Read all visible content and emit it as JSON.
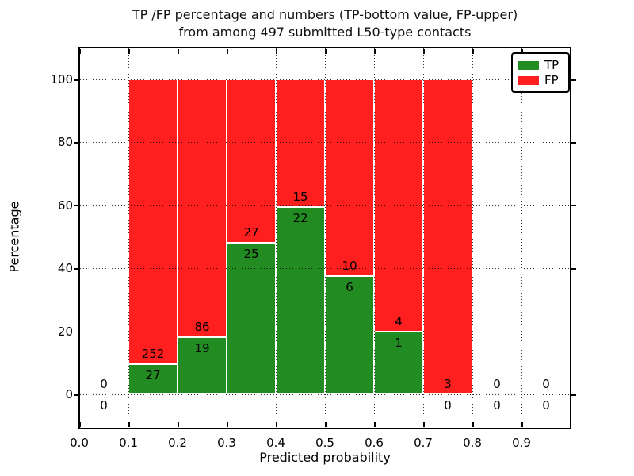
{
  "chart_data": {
    "type": "bar",
    "stacked": true,
    "percentage_scale": true,
    "title_line1": "TP /FP percentage and numbers (TP-bottom value, FP-upper)",
    "title_line2": "from among 497 submitted L50-type contacts",
    "total_contacts": 497,
    "xlabel": "Predicted probability",
    "ylabel": "Percentage",
    "grid": true,
    "xlim": [
      0.0,
      1.0
    ],
    "ylim": [
      -11,
      111
    ],
    "x_ticks": [
      {
        "value": 0.0,
        "label": "0.0"
      },
      {
        "value": 0.1,
        "label": "0.1"
      },
      {
        "value": 0.2,
        "label": "0.2"
      },
      {
        "value": 0.3,
        "label": "0.3"
      },
      {
        "value": 0.4,
        "label": "0.4"
      },
      {
        "value": 0.5,
        "label": "0.5"
      },
      {
        "value": 0.6,
        "label": "0.6"
      },
      {
        "value": 0.7,
        "label": "0.7"
      },
      {
        "value": 0.8,
        "label": "0.8"
      },
      {
        "value": 0.9,
        "label": "0.9"
      }
    ],
    "y_ticks": [
      {
        "value": 0,
        "label": "0"
      },
      {
        "value": 20,
        "label": "20"
      },
      {
        "value": 40,
        "label": "40"
      },
      {
        "value": 60,
        "label": "60"
      },
      {
        "value": 80,
        "label": "80"
      },
      {
        "value": 100,
        "label": "100"
      }
    ],
    "legend": {
      "position": "upper-right",
      "items": [
        {
          "label": "TP",
          "color": "#228b22"
        },
        {
          "label": "FP",
          "color": "#ff1f1f"
        }
      ]
    },
    "bins": [
      {
        "x0": 0.0,
        "x1": 0.1,
        "tp": 0,
        "fp": 0
      },
      {
        "x0": 0.1,
        "x1": 0.2,
        "tp": 27,
        "fp": 252
      },
      {
        "x0": 0.2,
        "x1": 0.3,
        "tp": 19,
        "fp": 86
      },
      {
        "x0": 0.3,
        "x1": 0.4,
        "tp": 25,
        "fp": 27
      },
      {
        "x0": 0.4,
        "x1": 0.5,
        "tp": 22,
        "fp": 15
      },
      {
        "x0": 0.5,
        "x1": 0.6,
        "tp": 6,
        "fp": 10
      },
      {
        "x0": 0.6,
        "x1": 0.7,
        "tp": 1,
        "fp": 4
      },
      {
        "x0": 0.7,
        "x1": 0.8,
        "tp": 0,
        "fp": 3
      },
      {
        "x0": 0.8,
        "x1": 0.9,
        "tp": 0,
        "fp": 0
      },
      {
        "x0": 0.9,
        "x1": 1.0,
        "tp": 0,
        "fp": 0
      }
    ]
  }
}
